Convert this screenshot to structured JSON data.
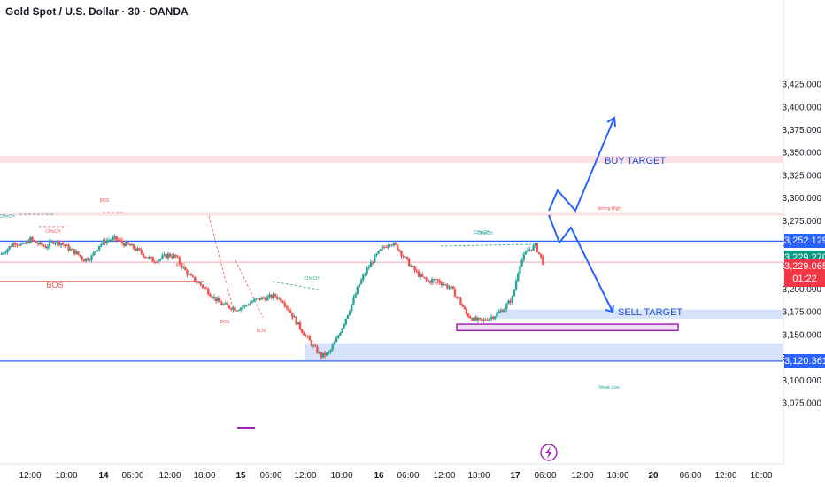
{
  "header": {
    "symbol_title": "Gold Spot / U.S. Dollar · 30 · OANDA"
  },
  "colors": {
    "up": "#26a69a",
    "down": "#ef5350",
    "blue": "#2962ff",
    "purple": "#9c27b0",
    "zone_red": "#fde0e3",
    "zone_blue": "#d7e3fb"
  },
  "price_axis": {
    "ticks": [
      "3,425.000",
      "3,400.000",
      "3,375.000",
      "3,350.000",
      "3,325.000",
      "3,300.000",
      "3,275.000",
      "3,250.000",
      "3,225.000",
      "3,200.000",
      "3,175.000",
      "3,150.000",
      "3,125.000",
      "3,100.000",
      "3,075.000"
    ],
    "tick_values": [
      3425,
      3400,
      3375,
      3350,
      3325,
      3300,
      3275,
      3250,
      3225,
      3200,
      3175,
      3150,
      3125,
      3100,
      3075
    ],
    "badges": {
      "level_high": {
        "text": "3,252.129",
        "value": 3252.129
      },
      "last_price": {
        "text": "3,229.270",
        "value": 3229.27
      },
      "bid": {
        "text": "3,229.065",
        "value": 3229.065
      },
      "countdown": "01:22",
      "level_low": {
        "text": "3,120.361",
        "value": 3120.361
      }
    }
  },
  "time_axis": {
    "labels": [
      "12:00",
      "18:00",
      "14",
      "06:00",
      "12:00",
      "18:00",
      "15",
      "06:00",
      "12:00",
      "18:00",
      "16",
      "06:00",
      "12:00",
      "18:00",
      "17",
      "06:00",
      "12:00",
      "18:00",
      "20",
      "06:00",
      "12:00",
      "18:00"
    ],
    "bold_labels": [
      "14",
      "15",
      "16",
      "17",
      "20"
    ]
  },
  "annotations": {
    "buy_target": "BUY TARGET",
    "sell_target": "SELL TARGET",
    "strong_high": "Strong High",
    "weak_low": "Weak Low",
    "structure_labels": [
      "BOS",
      "CHoCH",
      "BOS",
      "BOS",
      "BOS",
      "BOS",
      "BOS",
      "CHoCH",
      "CHoCH",
      "CHoCH",
      "EQH",
      "CHoCH",
      "CHoCH"
    ]
  },
  "chart_data": {
    "type": "candlestick",
    "title": "Gold Spot / U.S. Dollar · 30 · OANDA",
    "ylim": [
      3065,
      3430
    ],
    "close_path": [
      3237,
      3244,
      3251,
      3247,
      3254,
      3249,
      3246,
      3252,
      3250,
      3244,
      3239,
      3232,
      3235,
      3248,
      3253,
      3255,
      3250,
      3247,
      3242,
      3236,
      3231,
      3233,
      3237,
      3235,
      3222,
      3212,
      3206,
      3199,
      3190,
      3183,
      3180,
      3178,
      3181,
      3186,
      3189,
      3190,
      3192,
      3187,
      3174,
      3160,
      3148,
      3136,
      3126,
      3129,
      3144,
      3163,
      3183,
      3205,
      3221,
      3234,
      3244,
      3251,
      3245,
      3233,
      3222,
      3213,
      3208,
      3210,
      3205,
      3200,
      3188,
      3172,
      3166,
      3164,
      3168,
      3172,
      3179,
      3190,
      3228,
      3242,
      3247,
      3229
    ],
    "horizontal_levels": [
      3252.129,
      3120.361
    ],
    "zones": [
      {
        "label": "supply",
        "from": 3338,
        "to": 3346
      },
      {
        "label": "supply",
        "from": 3280,
        "to": 3284
      },
      {
        "label": "demand",
        "from": 3167,
        "to": 3177
      },
      {
        "label": "demand",
        "from": 3121,
        "to": 3140
      },
      {
        "label": "demand",
        "from": 3154,
        "to": 3161
      }
    ],
    "targets": {
      "buy": "BUY TARGET",
      "sell": "SELL TARGET"
    }
  }
}
